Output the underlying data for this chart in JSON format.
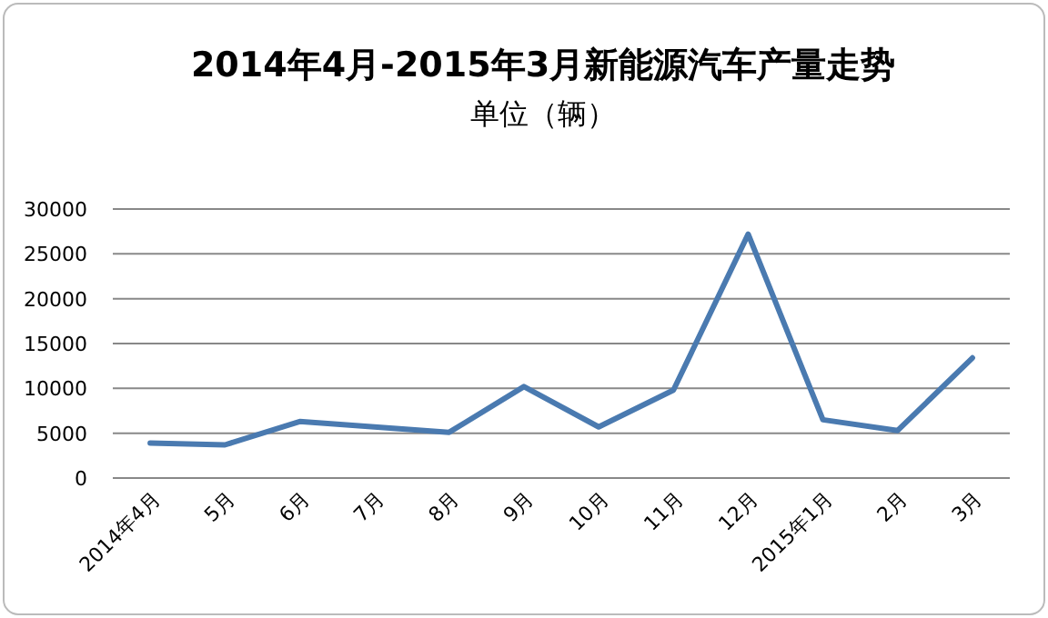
{
  "chart_data": {
    "type": "line",
    "title": "2014年4月-2015年3月新能源汽车产量走势",
    "subtitle": "单位（辆）",
    "categories": [
      "2014年4月",
      "5月",
      "6月",
      "7月",
      "8月",
      "9月",
      "10月",
      "11月",
      "12月",
      "2015年1月",
      "2月",
      "3月"
    ],
    "series": [
      {
        "color": "#4a7ab0",
        "values": [
          3900,
          3700,
          6300,
          5700,
          5100,
          10200,
          5700,
          9800,
          27200,
          6500,
          5300,
          13400
        ]
      }
    ],
    "ylim": [
      0,
      30000
    ],
    "yticks": [
      0,
      5000,
      10000,
      15000,
      20000,
      25000,
      30000
    ],
    "grid": "y",
    "marker": "none",
    "line_style": "solid"
  }
}
